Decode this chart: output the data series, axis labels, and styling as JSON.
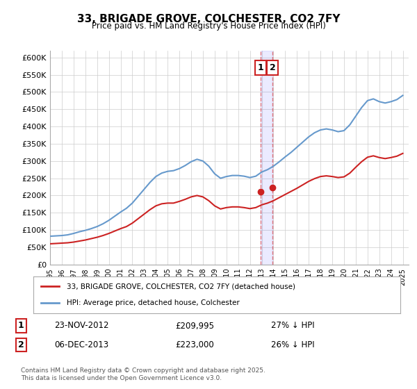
{
  "title": "33, BRIGADE GROVE, COLCHESTER, CO2 7FY",
  "subtitle": "Price paid vs. HM Land Registry's House Price Index (HPI)",
  "ylabel": "",
  "ylim": [
    0,
    620000
  ],
  "yticks": [
    0,
    50000,
    100000,
    150000,
    200000,
    250000,
    300000,
    350000,
    400000,
    450000,
    500000,
    550000,
    600000
  ],
  "ytick_labels": [
    "£0",
    "£50K",
    "£100K",
    "£150K",
    "£200K",
    "£250K",
    "£300K",
    "£350K",
    "£400K",
    "£450K",
    "£500K",
    "£550K",
    "£600K"
  ],
  "hpi_color": "#6699cc",
  "price_color": "#cc2222",
  "marker_color": "#cc2222",
  "grid_color": "#cccccc",
  "bg_color": "#ffffff",
  "legend_label_price": "33, BRIGADE GROVE, COLCHESTER, CO2 7FY (detached house)",
  "legend_label_hpi": "HPI: Average price, detached house, Colchester",
  "annotation1_box": "1",
  "annotation2_box": "2",
  "annotation1_date": "23-NOV-2012",
  "annotation1_price": "£209,995",
  "annotation1_pct": "27% ↓ HPI",
  "annotation2_date": "06-DEC-2013",
  "annotation2_price": "£223,000",
  "annotation2_pct": "26% ↓ HPI",
  "footer": "Contains HM Land Registry data © Crown copyright and database right 2025.\nThis data is licensed under the Open Government Licence v3.0.",
  "hpi_x": [
    1995,
    1995.5,
    1996,
    1996.5,
    1997,
    1997.5,
    1998,
    1998.5,
    1999,
    1999.5,
    2000,
    2000.5,
    2001,
    2001.5,
    2002,
    2002.5,
    2003,
    2003.5,
    2004,
    2004.5,
    2005,
    2005.5,
    2006,
    2006.5,
    2007,
    2007.5,
    2008,
    2008.5,
    2009,
    2009.5,
    2010,
    2010.5,
    2011,
    2011.5,
    2012,
    2012.5,
    2013,
    2013.5,
    2014,
    2014.5,
    2015,
    2015.5,
    2016,
    2016.5,
    2017,
    2017.5,
    2018,
    2018.5,
    2019,
    2019.5,
    2020,
    2020.5,
    2021,
    2021.5,
    2022,
    2022.5,
    2023,
    2023.5,
    2024,
    2024.5,
    2025
  ],
  "hpi_y": [
    82000,
    83000,
    84000,
    86000,
    90000,
    95000,
    99000,
    104000,
    110000,
    118000,
    128000,
    140000,
    152000,
    163000,
    178000,
    198000,
    218000,
    238000,
    255000,
    265000,
    270000,
    272000,
    278000,
    287000,
    298000,
    305000,
    300000,
    285000,
    263000,
    250000,
    255000,
    258000,
    258000,
    256000,
    252000,
    256000,
    268000,
    275000,
    285000,
    298000,
    312000,
    325000,
    340000,
    355000,
    370000,
    382000,
    390000,
    393000,
    390000,
    385000,
    388000,
    405000,
    430000,
    455000,
    475000,
    480000,
    472000,
    468000,
    472000,
    478000,
    490000
  ],
  "price_x": [
    1995.0,
    1995.5,
    1996,
    1996.5,
    1997,
    1997.5,
    1998,
    1998.5,
    1999,
    1999.5,
    2000,
    2000.5,
    2001,
    2001.5,
    2002,
    2002.5,
    2003,
    2003.5,
    2004,
    2004.5,
    2005,
    2005.5,
    2006,
    2006.5,
    2007,
    2007.5,
    2008,
    2008.5,
    2009,
    2009.5,
    2010,
    2010.5,
    2011,
    2011.5,
    2012,
    2012.5,
    2013,
    2013.5,
    2014,
    2014.5,
    2015,
    2015.5,
    2016,
    2016.5,
    2017,
    2017.5,
    2018,
    2018.5,
    2019,
    2019.5,
    2020,
    2020.5,
    2021,
    2021.5,
    2022,
    2022.5,
    2023,
    2023.5,
    2024,
    2024.5,
    2025
  ],
  "price_y": [
    60000,
    61000,
    62000,
    63000,
    65000,
    68000,
    71000,
    75000,
    79000,
    84000,
    90000,
    97000,
    104000,
    110000,
    120000,
    133000,
    146000,
    159000,
    170000,
    176000,
    178000,
    178000,
    183000,
    189000,
    196000,
    200000,
    196000,
    185000,
    170000,
    161000,
    165000,
    167000,
    167000,
    165000,
    162000,
    165000,
    173000,
    178000,
    185000,
    194000,
    203000,
    212000,
    221000,
    231000,
    241000,
    249000,
    255000,
    257000,
    255000,
    252000,
    254000,
    265000,
    282000,
    298000,
    311000,
    315000,
    310000,
    307000,
    310000,
    314000,
    322000
  ],
  "sale1_x": 2012.9,
  "sale1_y": 209995,
  "sale2_x": 2013.92,
  "sale2_y": 223000,
  "vline1_x": 2012.9,
  "vline2_x": 2013.92,
  "xmin": 1995,
  "xmax": 2025.5
}
